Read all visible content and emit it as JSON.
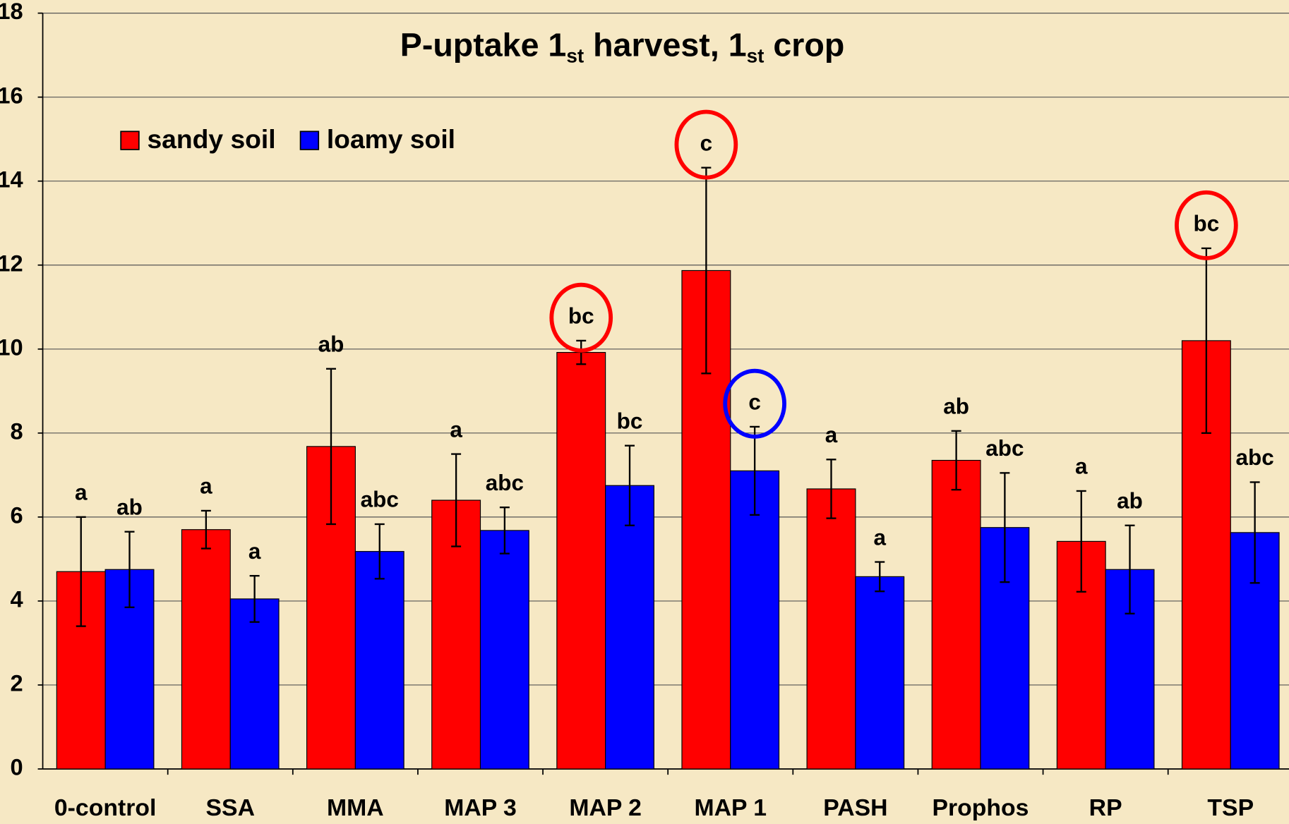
{
  "chart_data": {
    "type": "bar",
    "title_parts": [
      "P-uptake 1",
      "st",
      " harvest, 1",
      "st",
      " crop"
    ],
    "categories": [
      "0-control",
      "SSA",
      "MMA",
      "MAP 3",
      "MAP 2",
      "MAP 1",
      "PASH",
      "Prophos",
      "RP",
      "TSP"
    ],
    "series": [
      {
        "name": "sandy soil",
        "color": "#ff0000",
        "values": [
          4.7,
          5.7,
          7.68,
          6.4,
          9.92,
          11.87,
          6.67,
          7.35,
          5.42,
          10.2
        ],
        "errors": [
          1.3,
          0.45,
          1.85,
          1.1,
          0.28,
          2.45,
          0.7,
          0.7,
          1.2,
          2.2
        ],
        "letters": [
          "a",
          "a",
          "ab",
          "a",
          "bc",
          "c",
          "a",
          "ab",
          "a",
          "bc"
        ],
        "circled": [
          false,
          false,
          false,
          false,
          true,
          true,
          false,
          false,
          false,
          true
        ]
      },
      {
        "name": "loamy soil",
        "color": "#0000ff",
        "values": [
          4.75,
          4.05,
          5.18,
          5.68,
          6.75,
          7.1,
          4.58,
          5.75,
          4.75,
          5.63
        ],
        "errors": [
          0.9,
          0.55,
          0.65,
          0.55,
          0.95,
          1.05,
          0.35,
          1.3,
          1.05,
          1.2
        ],
        "letters": [
          "ab",
          "a",
          "abc",
          "abc",
          "bc",
          "c",
          "a",
          "abc",
          "ab",
          "abc"
        ],
        "circled": [
          false,
          false,
          false,
          false,
          false,
          true,
          false,
          false,
          false,
          false
        ]
      }
    ],
    "ylim": [
      0,
      18
    ],
    "yticks": [
      0,
      2,
      4,
      6,
      8,
      10,
      12,
      14,
      16,
      18
    ],
    "grid": true,
    "legend": "top-left"
  }
}
